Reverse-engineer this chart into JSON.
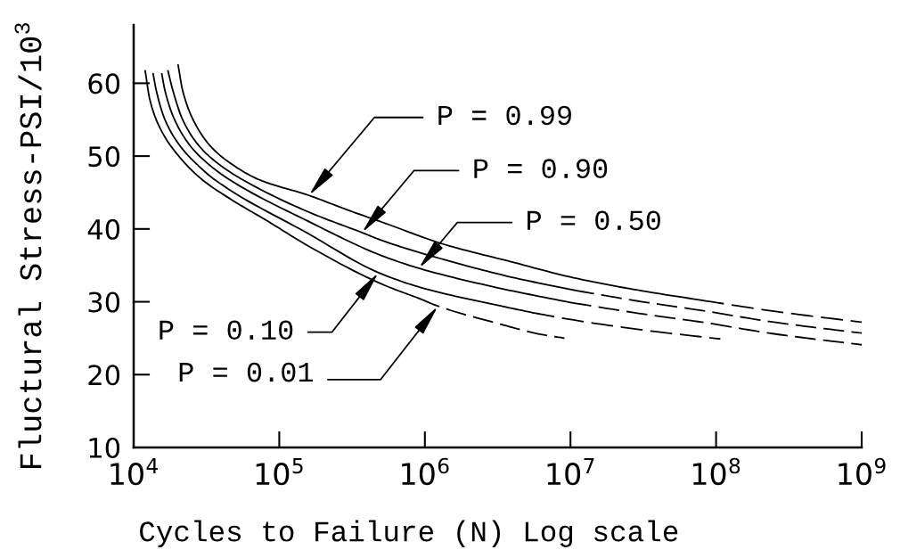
{
  "chart_data": {
    "type": "line",
    "xlabel": "Cycles to Failure (N) Log scale",
    "ylabel": "Fluctural Stress-PSI/10$^{3}$",
    "log": "x",
    "xlim": [
      10000,
      1000000000
    ],
    "xticks": [
      {
        "value": 10000,
        "label": "10$^{4}$"
      },
      {
        "value": 100000,
        "label": "10$^{5}$"
      },
      {
        "value": 1000000,
        "label": "10$^{6}$"
      },
      {
        "value": 10000000,
        "label": "10$^{7}$"
      },
      {
        "value": 100000000,
        "label": "10$^{8}$"
      },
      {
        "value": 1000000000,
        "label": "10$^{9}$"
      }
    ],
    "ylim": [
      10,
      68
    ],
    "yticks": [
      10,
      20,
      30,
      40,
      50,
      60
    ],
    "grid": false,
    "marker": "none",
    "series": [
      {
        "color": "#000000",
        "line_style": "solid",
        "x": [
          20200,
          21700,
          25600,
          33900,
          47100,
          72000,
          160000,
          295000,
          530000,
          1350000,
          3900000,
          10500000,
          29000000,
          80000000
        ],
        "values": [
          62.5,
          59.0,
          55.0,
          51.3,
          48.9,
          46.8,
          44.6,
          42.6,
          40.8,
          37.9,
          35.5,
          33.3,
          31.6,
          30.2
        ]
      },
      {
        "color": "#000000",
        "line_style": "dashed",
        "x": [
          80000000,
          250000000,
          1000000000
        ],
        "values": [
          30.2,
          28.7,
          27.2
        ]
      },
      {
        "color": "#000000",
        "line_style": "solid",
        "x": [
          17200,
          18600,
          21700,
          28400,
          38400,
          55500,
          160000,
          370000,
          510000,
          1350000,
          3900000,
          10500000
        ],
        "values": [
          61.7,
          59.0,
          55.0,
          51.3,
          48.9,
          46.8,
          42.3,
          39.5,
          38.4,
          35.8,
          33.4,
          31.6
        ]
      },
      {
        "color": "#000000",
        "line_style": "dashed",
        "x": [
          10500000,
          29000000,
          80000000,
          250000000,
          1000000000
        ],
        "values": [
          31.6,
          30.1,
          28.8,
          27.2,
          25.7
        ]
      },
      {
        "color": "#000000",
        "line_style": "solid",
        "x": [
          15600,
          16400,
          19100,
          24700,
          32600,
          45200,
          160000,
          510000,
          910000,
          3200000,
          10000000
        ],
        "values": [
          61.3,
          59.0,
          55.0,
          51.3,
          48.9,
          46.8,
          41.0,
          36.3,
          34.6,
          31.9,
          29.9
        ]
      },
      {
        "color": "#000000",
        "line_style": "dashed",
        "x": [
          10000000,
          32000000,
          80000000,
          250000000,
          1000000000
        ],
        "values": [
          29.9,
          28.3,
          27.2,
          25.6,
          24.1
        ]
      },
      {
        "color": "#000000",
        "line_style": "solid",
        "x": [
          13600,
          14300,
          16400,
          21000,
          27100,
          35800,
          160000,
          480000,
          1000000,
          3200000,
          5500000
        ],
        "values": [
          61.3,
          59.0,
          55.0,
          51.3,
          48.9,
          46.8,
          39.3,
          34.0,
          31.8,
          29.5,
          28.5
        ]
      },
      {
        "color": "#000000",
        "line_style": "dashed",
        "x": [
          5500000,
          10500000,
          32000000,
          107000000
        ],
        "values": [
          28.5,
          27.5,
          26.1,
          24.9
        ]
      },
      {
        "color": "#000000",
        "line_style": "solid",
        "x": [
          12000,
          12900,
          15300,
          20200,
          29400,
          47100,
          82800,
          160000,
          510000,
          930000
        ],
        "values": [
          61.7,
          57.8,
          53.7,
          50.1,
          46.8,
          44.0,
          41.1,
          37.6,
          32.4,
          30.4
        ]
      },
      {
        "color": "#000000",
        "line_style": "dashed",
        "x": [
          930000,
          1230000,
          3200000,
          6000000,
          9100000
        ],
        "values": [
          30.4,
          29.4,
          27.0,
          25.6,
          25.0
        ]
      }
    ],
    "annotations": [
      {
        "text": "P = 0.99",
        "x": 160000,
        "y": 44.6
      },
      {
        "text": "P = 0.90",
        "x": 370000,
        "y": 39.5
      },
      {
        "text": "P = 0.50",
        "x": 910000,
        "y": 34.6
      },
      {
        "text": "P = 0.10",
        "x": 480000,
        "y": 34.0
      },
      {
        "text": "P = 0.01",
        "x": 1230000,
        "y": 29.4
      }
    ]
  }
}
